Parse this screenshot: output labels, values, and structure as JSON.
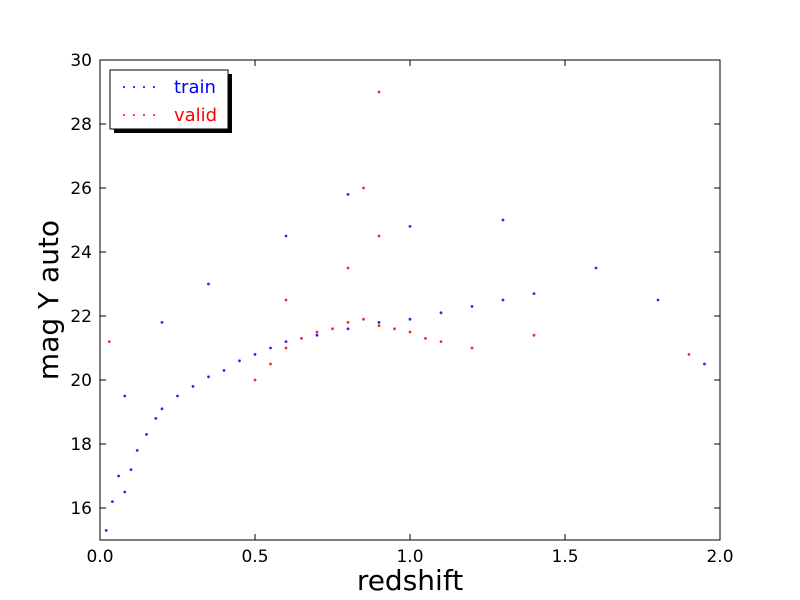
{
  "chart_data": {
    "type": "scatter",
    "xlabel": "redshift",
    "ylabel": "mag Y auto",
    "xlim": [
      0.0,
      2.0
    ],
    "ylim": [
      15.0,
      30.0
    ],
    "xticks": [
      "0.0",
      "0.5",
      "1.0",
      "1.5",
      "2.0"
    ],
    "yticks": [
      "16",
      "18",
      "20",
      "22",
      "24",
      "26",
      "28",
      "30"
    ],
    "grid": false,
    "legend_position": "top-left",
    "series": [
      {
        "name": "train",
        "color": "#0000ff",
        "points": [
          [
            0.02,
            15.3
          ],
          [
            0.04,
            16.2
          ],
          [
            0.06,
            17.0
          ],
          [
            0.08,
            16.5
          ],
          [
            0.1,
            17.2
          ],
          [
            0.12,
            17.8
          ],
          [
            0.15,
            18.3
          ],
          [
            0.18,
            18.8
          ],
          [
            0.2,
            19.1
          ],
          [
            0.25,
            19.5
          ],
          [
            0.3,
            19.8
          ],
          [
            0.35,
            20.1
          ],
          [
            0.4,
            20.3
          ],
          [
            0.45,
            20.6
          ],
          [
            0.5,
            20.8
          ],
          [
            0.55,
            21.0
          ],
          [
            0.6,
            21.2
          ],
          [
            0.7,
            21.4
          ],
          [
            0.8,
            21.6
          ],
          [
            0.9,
            21.8
          ],
          [
            1.0,
            21.9
          ],
          [
            1.1,
            22.1
          ],
          [
            1.2,
            22.3
          ],
          [
            1.3,
            22.5
          ],
          [
            1.4,
            22.7
          ],
          [
            0.08,
            19.5
          ],
          [
            0.2,
            21.8
          ],
          [
            0.35,
            23.0
          ],
          [
            0.6,
            24.5
          ],
          [
            0.8,
            25.8
          ],
          [
            1.0,
            24.8
          ],
          [
            1.3,
            25.0
          ],
          [
            1.6,
            23.5
          ],
          [
            1.8,
            22.5
          ],
          [
            1.95,
            20.5
          ]
        ]
      },
      {
        "name": "valid",
        "color": "#ff0000",
        "points": [
          [
            0.5,
            20.0
          ],
          [
            0.55,
            20.5
          ],
          [
            0.6,
            21.0
          ],
          [
            0.65,
            21.3
          ],
          [
            0.7,
            21.5
          ],
          [
            0.75,
            21.6
          ],
          [
            0.8,
            21.8
          ],
          [
            0.85,
            21.9
          ],
          [
            0.9,
            21.7
          ],
          [
            0.95,
            21.6
          ],
          [
            1.0,
            21.5
          ],
          [
            1.05,
            21.3
          ],
          [
            1.1,
            21.2
          ],
          [
            1.2,
            21.0
          ],
          [
            0.6,
            22.5
          ],
          [
            0.8,
            23.5
          ],
          [
            0.9,
            24.5
          ],
          [
            0.85,
            26.0
          ],
          [
            0.9,
            29.0
          ],
          [
            0.03,
            21.2
          ],
          [
            1.4,
            21.4
          ],
          [
            1.9,
            20.8
          ]
        ]
      }
    ]
  }
}
